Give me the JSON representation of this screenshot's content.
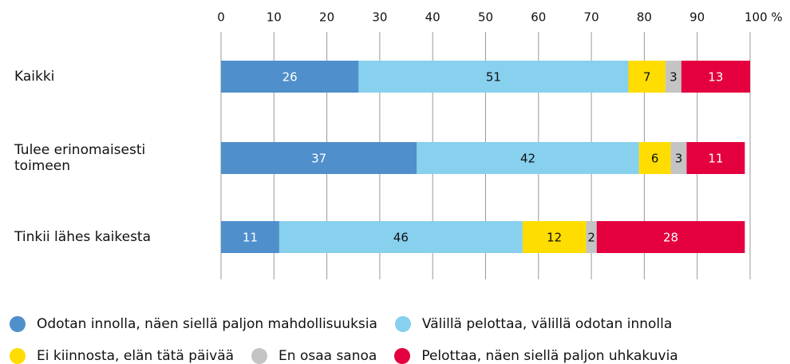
{
  "chart_data": {
    "type": "stacked_bar_horizontal",
    "categories": [
      "Kaikki",
      "Tulee erinomaisesti toimeen",
      "Tinkii lähes kaikesta"
    ],
    "series": [
      {
        "name": "Odotan innolla, näen siellä paljon mahdollisuuksia",
        "color": "#4f8fcc",
        "values": [
          26,
          37,
          11
        ]
      },
      {
        "name": "Välillä pelottaa, välillä odotan innolla",
        "color": "#87d0ee",
        "values": [
          51,
          42,
          46
        ]
      },
      {
        "name": "Ei kiinnosta, elän tätä päivää",
        "color": "#ffdd00",
        "values": [
          7,
          6,
          12
        ]
      },
      {
        "name": "En osaa sanoa",
        "color": "#c4c4c4",
        "values": [
          3,
          3,
          2
        ]
      },
      {
        "name": "Pelottaa, näen siellä paljon uhkakuvia",
        "color": "#e4003f",
        "values": [
          13,
          11,
          28
        ]
      }
    ],
    "xlim": [
      0,
      100
    ],
    "xticks": [
      0,
      10,
      20,
      30,
      40,
      50,
      60,
      70,
      80,
      90,
      {
        "value": 100,
        "label": "100 %"
      }
    ],
    "grid": true,
    "legend": "bottom"
  }
}
